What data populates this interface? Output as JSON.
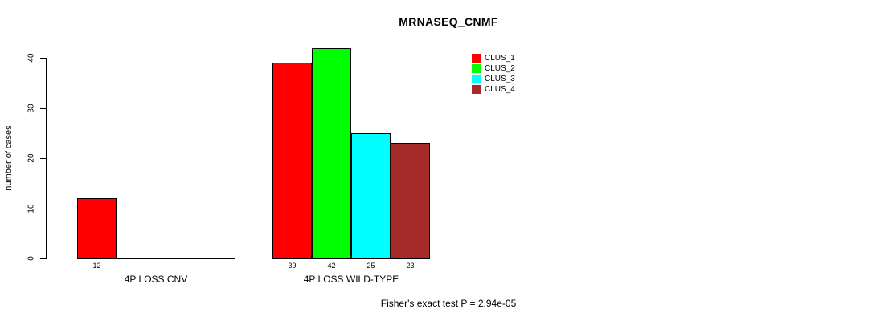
{
  "title": "MRNASEQ_CNMF",
  "y_axis": {
    "label": "number of cases",
    "ticks": [
      0,
      10,
      20,
      30,
      40
    ]
  },
  "chart_data": {
    "type": "bar",
    "title": "MRNASEQ_CNMF",
    "xlabel": "",
    "ylabel": "number of cases",
    "ylim": [
      0,
      40
    ],
    "grid": false,
    "legend_position": "top-right",
    "categories": [
      "4P LOSS CNV",
      "4P LOSS WILD-TYPE"
    ],
    "series": [
      {
        "name": "CLUS_1",
        "color": "#ff0000",
        "values": [
          12,
          39
        ]
      },
      {
        "name": "CLUS_2",
        "color": "#00ff00",
        "values": [
          0,
          42
        ]
      },
      {
        "name": "CLUS_3",
        "color": "#00ffff",
        "values": [
          0,
          25
        ]
      },
      {
        "name": "CLUS_4",
        "color": "#a52a2a",
        "values": [
          0,
          23
        ]
      }
    ],
    "bar_value_labels": [
      "12",
      "39",
      "42",
      "25",
      "23"
    ],
    "annotation": "Fisher's exact test P = 2.94e-05"
  }
}
